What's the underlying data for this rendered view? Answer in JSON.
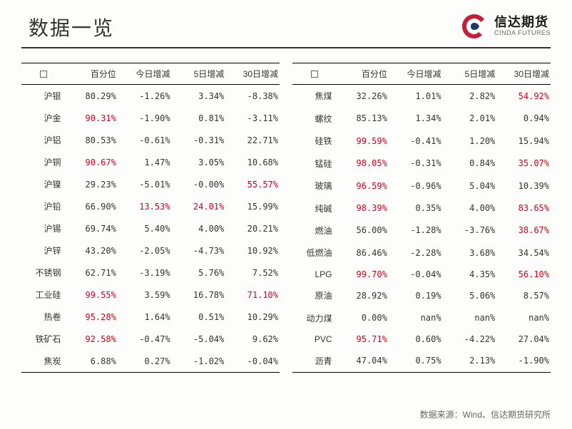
{
  "title": "数据一览",
  "logo": {
    "cn": "信达期货",
    "en": "CINDA FUTURES"
  },
  "source": "数据来源：Wind、信达期货研究所",
  "headers": [
    "",
    "百分位",
    "今日增减",
    "5日增减",
    "30日增减"
  ],
  "colors": {
    "red": "#d9001b",
    "text": "#333333",
    "border": "#000000",
    "bg": "#fdfdfb"
  },
  "font_sizes": {
    "title": 28,
    "table": 12,
    "source": 12
  },
  "left": [
    {
      "name": "沪银",
      "pct": "80.29%",
      "pct_red": false,
      "d1": "-1.26%",
      "d1_red": false,
      "d5": "3.34%",
      "d5_red": false,
      "d30": "-8.38%",
      "d30_red": false
    },
    {
      "name": "沪金",
      "pct": "90.31%",
      "pct_red": true,
      "d1": "-1.90%",
      "d1_red": false,
      "d5": "0.81%",
      "d5_red": false,
      "d30": "-3.11%",
      "d30_red": false
    },
    {
      "name": "沪铝",
      "pct": "80.53%",
      "pct_red": false,
      "d1": "-0.61%",
      "d1_red": false,
      "d5": "-0.31%",
      "d5_red": false,
      "d30": "22.71%",
      "d30_red": false
    },
    {
      "name": "沪铜",
      "pct": "90.67%",
      "pct_red": true,
      "d1": "1.47%",
      "d1_red": false,
      "d5": "3.05%",
      "d5_red": false,
      "d30": "10.68%",
      "d30_red": false
    },
    {
      "name": "沪镍",
      "pct": "29.23%",
      "pct_red": false,
      "d1": "-5.01%",
      "d1_red": false,
      "d5": "-0.00%",
      "d5_red": false,
      "d30": "55.57%",
      "d30_red": true
    },
    {
      "name": "沪铅",
      "pct": "66.90%",
      "pct_red": false,
      "d1": "13.53%",
      "d1_red": true,
      "d5": "24.01%",
      "d5_red": true,
      "d30": "15.99%",
      "d30_red": false
    },
    {
      "name": "沪锡",
      "pct": "69.74%",
      "pct_red": false,
      "d1": "5.40%",
      "d1_red": false,
      "d5": "4.00%",
      "d5_red": false,
      "d30": "20.21%",
      "d30_red": false
    },
    {
      "name": "沪锌",
      "pct": "43.20%",
      "pct_red": false,
      "d1": "-2.05%",
      "d1_red": false,
      "d5": "-4.73%",
      "d5_red": false,
      "d30": "10.92%",
      "d30_red": false
    },
    {
      "name": "不锈钢",
      "pct": "62.71%",
      "pct_red": false,
      "d1": "-3.19%",
      "d1_red": false,
      "d5": "5.76%",
      "d5_red": false,
      "d30": "7.52%",
      "d30_red": false
    },
    {
      "name": "工业硅",
      "pct": "99.55%",
      "pct_red": true,
      "d1": "3.59%",
      "d1_red": false,
      "d5": "16.78%",
      "d5_red": false,
      "d30": "71.10%",
      "d30_red": true
    },
    {
      "name": "热卷",
      "pct": "95.28%",
      "pct_red": true,
      "d1": "1.64%",
      "d1_red": false,
      "d5": "0.51%",
      "d5_red": false,
      "d30": "10.29%",
      "d30_red": false
    },
    {
      "name": "铁矿石",
      "pct": "92.58%",
      "pct_red": true,
      "d1": "-0.47%",
      "d1_red": false,
      "d5": "-5.04%",
      "d5_red": false,
      "d30": "9.62%",
      "d30_red": false
    },
    {
      "name": "焦炭",
      "pct": "6.88%",
      "pct_red": false,
      "d1": "0.27%",
      "d1_red": false,
      "d5": "-1.02%",
      "d5_red": false,
      "d30": "-0.04%",
      "d30_red": false
    }
  ],
  "right": [
    {
      "name": "焦煤",
      "pct": "32.26%",
      "pct_red": false,
      "d1": "1.01%",
      "d1_red": false,
      "d5": "2.82%",
      "d5_red": false,
      "d30": "54.92%",
      "d30_red": true
    },
    {
      "name": "螺纹",
      "pct": "85.13%",
      "pct_red": false,
      "d1": "1.34%",
      "d1_red": false,
      "d5": "2.01%",
      "d5_red": false,
      "d30": "0.94%",
      "d30_red": false
    },
    {
      "name": "硅铁",
      "pct": "99.59%",
      "pct_red": true,
      "d1": "-0.41%",
      "d1_red": false,
      "d5": "1.20%",
      "d5_red": false,
      "d30": "15.94%",
      "d30_red": false
    },
    {
      "name": "锰硅",
      "pct": "98.05%",
      "pct_red": true,
      "d1": "-0.31%",
      "d1_red": false,
      "d5": "0.84%",
      "d5_red": false,
      "d30": "35.07%",
      "d30_red": true
    },
    {
      "name": "玻璃",
      "pct": "96.59%",
      "pct_red": true,
      "d1": "-0.96%",
      "d1_red": false,
      "d5": "5.04%",
      "d5_red": false,
      "d30": "10.39%",
      "d30_red": false
    },
    {
      "name": "纯碱",
      "pct": "98.39%",
      "pct_red": true,
      "d1": "0.35%",
      "d1_red": false,
      "d5": "4.00%",
      "d5_red": false,
      "d30": "83.65%",
      "d30_red": true
    },
    {
      "name": "燃油",
      "pct": "56.00%",
      "pct_red": false,
      "d1": "-1.28%",
      "d1_red": false,
      "d5": "-3.76%",
      "d5_red": false,
      "d30": "38.67%",
      "d30_red": true
    },
    {
      "name": "低燃油",
      "pct": "86.46%",
      "pct_red": false,
      "d1": "-2.28%",
      "d1_red": false,
      "d5": "3.68%",
      "d5_red": false,
      "d30": "34.54%",
      "d30_red": false
    },
    {
      "name": "LPG",
      "pct": "99.70%",
      "pct_red": true,
      "d1": "-0.04%",
      "d1_red": false,
      "d5": "4.35%",
      "d5_red": false,
      "d30": "56.10%",
      "d30_red": true
    },
    {
      "name": "原油",
      "pct": "28.92%",
      "pct_red": false,
      "d1": "0.19%",
      "d1_red": false,
      "d5": "5.06%",
      "d5_red": false,
      "d30": "8.57%",
      "d30_red": false
    },
    {
      "name": "动力煤",
      "pct": "0.00%",
      "pct_red": false,
      "d1": "nan%",
      "d1_red": false,
      "d5": "nan%",
      "d5_red": false,
      "d30": "nan%",
      "d30_red": false
    },
    {
      "name": "PVC",
      "pct": "95.71%",
      "pct_red": true,
      "d1": "0.60%",
      "d1_red": false,
      "d5": "-4.22%",
      "d5_red": false,
      "d30": "27.04%",
      "d30_red": false
    },
    {
      "name": "沥青",
      "pct": "47.04%",
      "pct_red": false,
      "d1": "0.75%",
      "d1_red": false,
      "d5": "2.13%",
      "d5_red": false,
      "d30": "-1.90%",
      "d30_red": false
    }
  ]
}
